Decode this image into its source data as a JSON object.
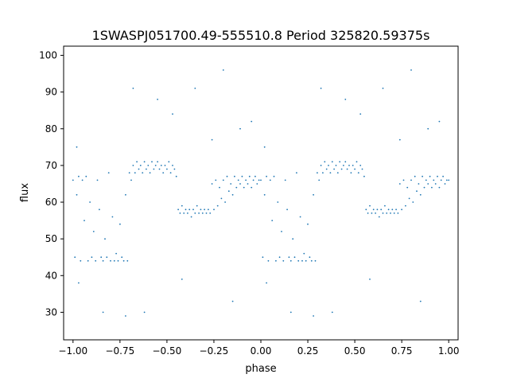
{
  "chart_data": {
    "type": "scatter",
    "title": "1SWASPJ051700.49-555510.8 Period 325820.59375s",
    "xlabel": "phase",
    "ylabel": "flux",
    "xlim": [
      -1.05,
      1.05
    ],
    "ylim": [
      22.5,
      102.5
    ],
    "xticks": [
      -1.0,
      -0.75,
      -0.5,
      -0.25,
      0.0,
      0.25,
      0.5,
      0.75,
      1.0
    ],
    "xtick_labels": [
      "−1.00",
      "−0.75",
      "−0.50",
      "−0.25",
      "0.00",
      "0.25",
      "0.50",
      "0.75",
      "1.00"
    ],
    "yticks": [
      30,
      40,
      50,
      60,
      70,
      80,
      90,
      100
    ],
    "ytick_labels": [
      "30",
      "40",
      "50",
      "60",
      "70",
      "80",
      "90",
      "100"
    ],
    "grid": false,
    "legend": "none",
    "marker_color": "#1f77b4",
    "series": [
      {
        "points": [
          [
            -1.0,
            66
          ],
          [
            -0.99,
            45
          ],
          [
            -0.98,
            62
          ],
          [
            -0.97,
            67
          ],
          [
            -0.96,
            44
          ],
          [
            -0.95,
            66
          ],
          [
            -0.94,
            55
          ],
          [
            -0.93,
            67
          ],
          [
            -0.92,
            44
          ],
          [
            -0.91,
            60
          ],
          [
            -0.9,
            45
          ],
          [
            -0.89,
            52
          ],
          [
            -0.88,
            44
          ],
          [
            -0.87,
            66
          ],
          [
            -0.86,
            58
          ],
          [
            -0.85,
            45
          ],
          [
            -0.84,
            44
          ],
          [
            -0.83,
            50
          ],
          [
            -0.82,
            45
          ],
          [
            -0.81,
            68
          ],
          [
            -0.8,
            44
          ],
          [
            -0.79,
            56
          ],
          [
            -0.78,
            44
          ],
          [
            -0.77,
            46
          ],
          [
            -0.76,
            44
          ],
          [
            -0.75,
            54
          ],
          [
            -0.74,
            45
          ],
          [
            -0.73,
            44
          ],
          [
            -0.72,
            62
          ],
          [
            -0.71,
            44
          ],
          [
            -0.7,
            68
          ],
          [
            -0.69,
            66
          ],
          [
            -0.68,
            70
          ],
          [
            -0.67,
            68
          ],
          [
            -0.66,
            71
          ],
          [
            -0.65,
            69
          ],
          [
            -0.64,
            70
          ],
          [
            -0.63,
            68
          ],
          [
            -0.62,
            71
          ],
          [
            -0.61,
            69
          ],
          [
            -0.6,
            70
          ],
          [
            -0.59,
            68
          ],
          [
            -0.58,
            71
          ],
          [
            -0.57,
            69
          ],
          [
            -0.56,
            70
          ],
          [
            -0.55,
            71
          ],
          [
            -0.54,
            69
          ],
          [
            -0.53,
            70
          ],
          [
            -0.52,
            68
          ],
          [
            -0.51,
            70
          ],
          [
            -0.5,
            69
          ],
          [
            -0.49,
            71
          ],
          [
            -0.48,
            68
          ],
          [
            -0.47,
            70
          ],
          [
            -0.46,
            69
          ],
          [
            -0.45,
            67
          ],
          [
            -0.44,
            58
          ],
          [
            -0.43,
            57
          ],
          [
            -0.42,
            59
          ],
          [
            -0.41,
            57
          ],
          [
            -0.4,
            58
          ],
          [
            -0.39,
            57
          ],
          [
            -0.38,
            58
          ],
          [
            -0.37,
            56
          ],
          [
            -0.36,
            58
          ],
          [
            -0.35,
            57
          ],
          [
            -0.34,
            59
          ],
          [
            -0.33,
            57
          ],
          [
            -0.32,
            58
          ],
          [
            -0.31,
            57
          ],
          [
            -0.3,
            58
          ],
          [
            -0.29,
            57
          ],
          [
            -0.28,
            58
          ],
          [
            -0.27,
            57
          ],
          [
            -0.26,
            65
          ],
          [
            -0.25,
            58
          ],
          [
            -0.24,
            66
          ],
          [
            -0.23,
            59
          ],
          [
            -0.22,
            64
          ],
          [
            -0.21,
            61
          ],
          [
            -0.2,
            66
          ],
          [
            -0.19,
            60
          ],
          [
            -0.18,
            67
          ],
          [
            -0.17,
            63
          ],
          [
            -0.16,
            65
          ],
          [
            -0.15,
            62
          ],
          [
            -0.14,
            67
          ],
          [
            -0.13,
            64
          ],
          [
            -0.12,
            66
          ],
          [
            -0.11,
            65
          ],
          [
            -0.1,
            67
          ],
          [
            -0.09,
            64
          ],
          [
            -0.08,
            66
          ],
          [
            -0.07,
            65
          ],
          [
            -0.06,
            67
          ],
          [
            -0.05,
            64
          ],
          [
            -0.04,
            66
          ],
          [
            -0.03,
            67
          ],
          [
            -0.02,
            65
          ],
          [
            -0.01,
            66
          ],
          [
            0.0,
            66
          ],
          [
            0.01,
            45
          ],
          [
            0.02,
            62
          ],
          [
            0.03,
            67
          ],
          [
            0.04,
            44
          ],
          [
            0.05,
            66
          ],
          [
            0.06,
            55
          ],
          [
            0.07,
            67
          ],
          [
            0.08,
            44
          ],
          [
            0.09,
            60
          ],
          [
            0.1,
            45
          ],
          [
            0.11,
            52
          ],
          [
            0.12,
            44
          ],
          [
            0.13,
            66
          ],
          [
            0.14,
            58
          ],
          [
            0.15,
            45
          ],
          [
            0.16,
            44
          ],
          [
            0.17,
            50
          ],
          [
            0.18,
            45
          ],
          [
            0.19,
            68
          ],
          [
            0.2,
            44
          ],
          [
            0.21,
            56
          ],
          [
            0.22,
            44
          ],
          [
            0.23,
            46
          ],
          [
            0.24,
            44
          ],
          [
            0.25,
            54
          ],
          [
            0.26,
            45
          ],
          [
            0.27,
            44
          ],
          [
            0.28,
            62
          ],
          [
            0.29,
            44
          ],
          [
            0.3,
            68
          ],
          [
            0.31,
            66
          ],
          [
            0.32,
            70
          ],
          [
            0.33,
            68
          ],
          [
            0.34,
            71
          ],
          [
            0.35,
            69
          ],
          [
            0.36,
            70
          ],
          [
            0.37,
            68
          ],
          [
            0.38,
            71
          ],
          [
            0.39,
            69
          ],
          [
            0.4,
            70
          ],
          [
            0.41,
            68
          ],
          [
            0.42,
            71
          ],
          [
            0.43,
            69
          ],
          [
            0.44,
            70
          ],
          [
            0.45,
            71
          ],
          [
            0.46,
            69
          ],
          [
            0.47,
            70
          ],
          [
            0.48,
            68
          ],
          [
            0.49,
            70
          ],
          [
            0.5,
            69
          ],
          [
            0.51,
            71
          ],
          [
            0.52,
            68
          ],
          [
            0.53,
            70
          ],
          [
            0.54,
            69
          ],
          [
            0.55,
            67
          ],
          [
            0.56,
            58
          ],
          [
            0.57,
            57
          ],
          [
            0.58,
            59
          ],
          [
            0.59,
            57
          ],
          [
            0.6,
            58
          ],
          [
            0.61,
            57
          ],
          [
            0.62,
            58
          ],
          [
            0.63,
            56
          ],
          [
            0.64,
            58
          ],
          [
            0.65,
            57
          ],
          [
            0.66,
            59
          ],
          [
            0.67,
            57
          ],
          [
            0.68,
            58
          ],
          [
            0.69,
            57
          ],
          [
            0.7,
            58
          ],
          [
            0.71,
            57
          ],
          [
            0.72,
            58
          ],
          [
            0.73,
            57
          ],
          [
            0.74,
            65
          ],
          [
            0.75,
            58
          ],
          [
            0.76,
            66
          ],
          [
            0.77,
            59
          ],
          [
            0.78,
            64
          ],
          [
            0.79,
            61
          ],
          [
            0.8,
            66
          ],
          [
            0.81,
            60
          ],
          [
            0.82,
            67
          ],
          [
            0.83,
            63
          ],
          [
            0.84,
            65
          ],
          [
            0.85,
            62
          ],
          [
            0.86,
            67
          ],
          [
            0.87,
            64
          ],
          [
            0.88,
            66
          ],
          [
            0.89,
            65
          ],
          [
            0.9,
            67
          ],
          [
            0.91,
            64
          ],
          [
            0.92,
            66
          ],
          [
            0.93,
            65
          ],
          [
            0.94,
            67
          ],
          [
            0.95,
            64
          ],
          [
            0.96,
            66
          ],
          [
            0.97,
            67
          ],
          [
            0.98,
            65
          ],
          [
            0.99,
            66
          ],
          [
            1.0,
            66
          ],
          [
            -0.97,
            38
          ],
          [
            -0.84,
            30
          ],
          [
            -0.72,
            29
          ],
          [
            -0.98,
            75
          ],
          [
            -0.68,
            91
          ],
          [
            -0.55,
            88
          ],
          [
            -0.47,
            84
          ],
          [
            -0.35,
            91
          ],
          [
            -0.26,
            77
          ],
          [
            -0.2,
            96
          ],
          [
            -0.15,
            33
          ],
          [
            -0.11,
            80
          ],
          [
            -0.05,
            82
          ],
          [
            0.03,
            38
          ],
          [
            0.16,
            30
          ],
          [
            0.28,
            29
          ],
          [
            0.02,
            75
          ],
          [
            0.32,
            91
          ],
          [
            0.45,
            88
          ],
          [
            0.53,
            84
          ],
          [
            0.65,
            91
          ],
          [
            0.74,
            77
          ],
          [
            0.8,
            96
          ],
          [
            0.85,
            33
          ],
          [
            0.89,
            80
          ],
          [
            0.95,
            82
          ],
          [
            -0.62,
            30
          ],
          [
            0.38,
            30
          ],
          [
            -0.42,
            39
          ],
          [
            0.58,
            39
          ]
        ]
      }
    ]
  }
}
